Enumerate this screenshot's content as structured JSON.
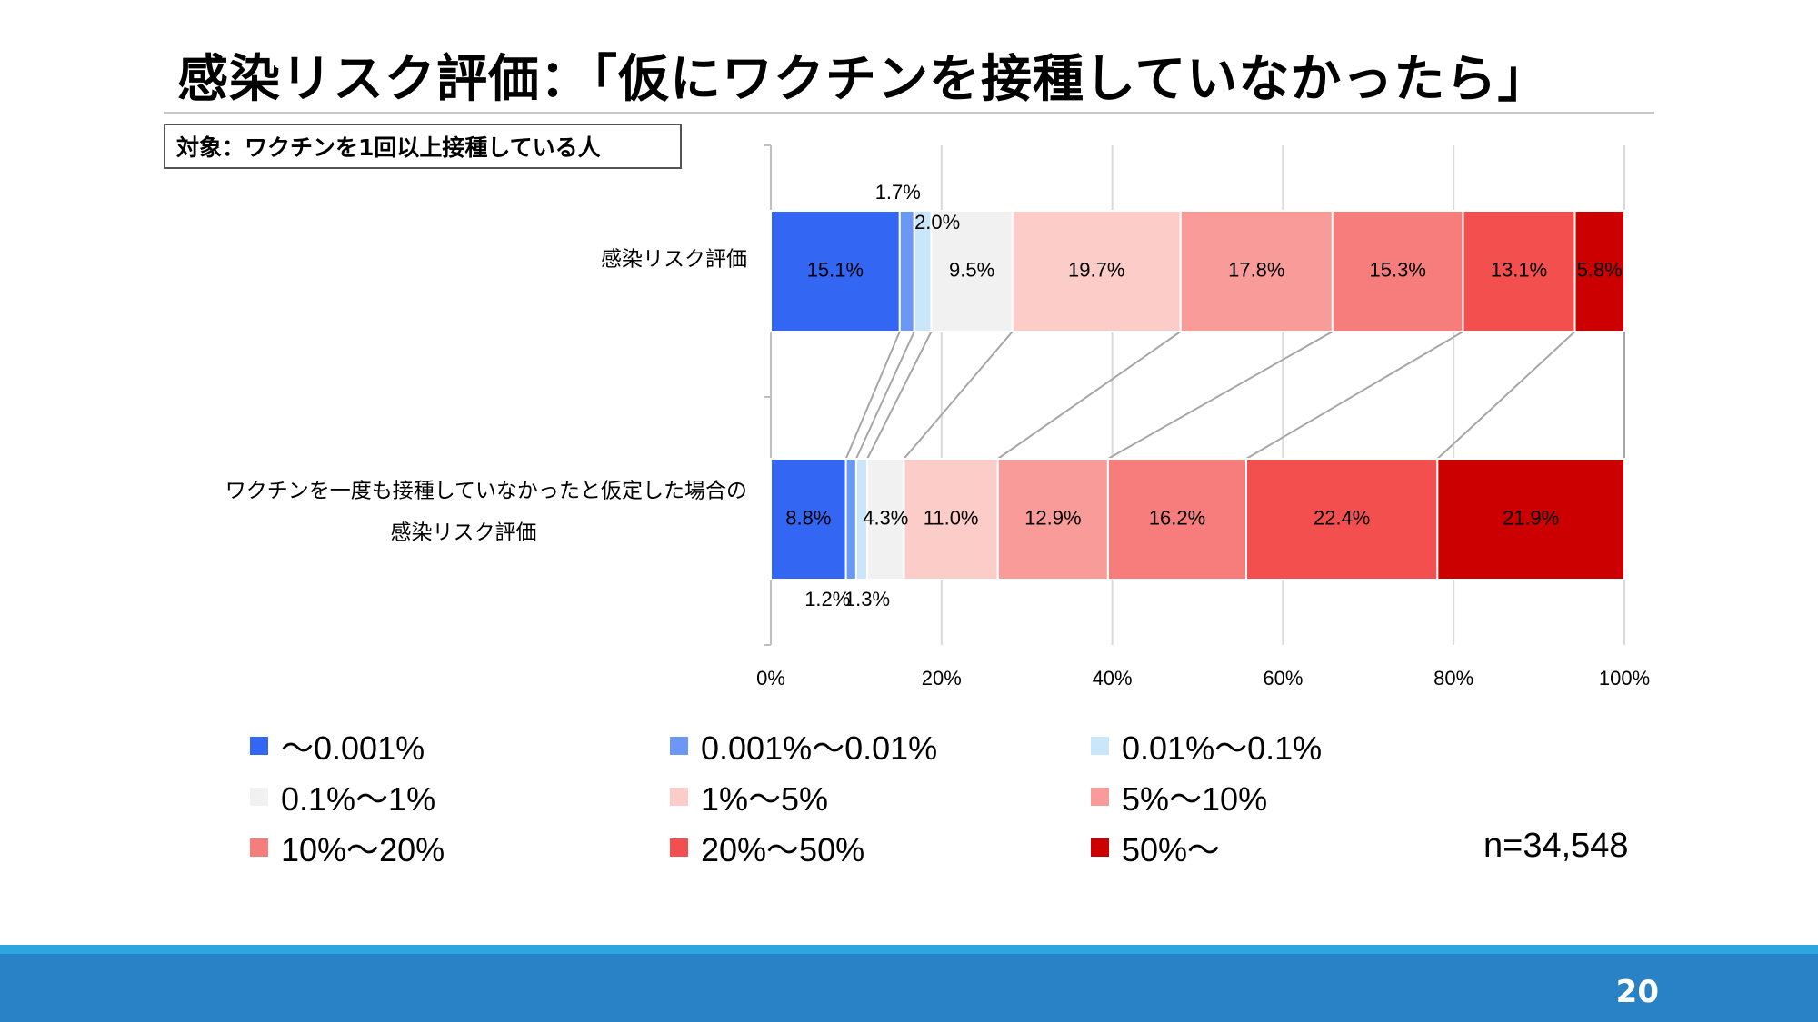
{
  "slide": {
    "title": "感染リスク評価：「仮にワクチンを接種していなかったら」",
    "target_label": "対象：ワクチンを1回以上接種している人",
    "sample_size": "n=34,548",
    "page_number": "20"
  },
  "chart_data": {
    "type": "bar",
    "orientation": "horizontal",
    "stacked": true,
    "percent_scale": true,
    "categories": [
      "感染リスク評価",
      "ワクチンを一度も接種していなかったと仮定した場合の\n感染リスク評価"
    ],
    "series": [
      {
        "name": "～0.001%",
        "color": "#3366f2",
        "values": [
          15.1,
          8.8
        ],
        "labels": [
          "15.1%",
          "8.8%"
        ]
      },
      {
        "name": "0.001%～0.01%",
        "color": "#6b98f5",
        "values": [
          1.7,
          1.2
        ],
        "labels": [
          "1.7%",
          "1.2%"
        ]
      },
      {
        "name": "0.01%～0.1%",
        "color": "#c9e6fb",
        "values": [
          2.0,
          1.3
        ],
        "labels": [
          "2.0%",
          "1.3%"
        ]
      },
      {
        "name": "0.1%～1%",
        "color": "#f1f1f1",
        "values": [
          9.5,
          4.3
        ],
        "labels": [
          "9.5%",
          "4.3%"
        ]
      },
      {
        "name": "1%～5%",
        "color": "#fcccc9",
        "values": [
          19.7,
          11.0
        ],
        "labels": [
          "19.7%",
          "11.0%"
        ]
      },
      {
        "name": "5%～10%",
        "color": "#f99c99",
        "values": [
          17.8,
          12.9
        ],
        "labels": [
          "17.8%",
          "12.9%"
        ]
      },
      {
        "name": "10%～20%",
        "color": "#f77d7d",
        "values": [
          15.3,
          16.2
        ],
        "labels": [
          "15.3%",
          "16.2%"
        ]
      },
      {
        "name": "20%～50%",
        "color": "#f44f4f",
        "values": [
          13.1,
          22.4
        ],
        "labels": [
          "13.1%",
          "22.4%"
        ]
      },
      {
        "name": "50%～",
        "color": "#cc0000",
        "values": [
          5.8,
          21.9
        ],
        "labels": [
          "5.8%",
          "21.9%"
        ]
      }
    ],
    "xlim": [
      0,
      100
    ],
    "xticks": [
      "0%",
      "20%",
      "40%",
      "60%",
      "80%",
      "100%"
    ],
    "xtick_values": [
      0,
      20,
      40,
      60,
      80,
      100
    ],
    "grid": true,
    "series_lines": true,
    "legend_position": "bottom"
  }
}
